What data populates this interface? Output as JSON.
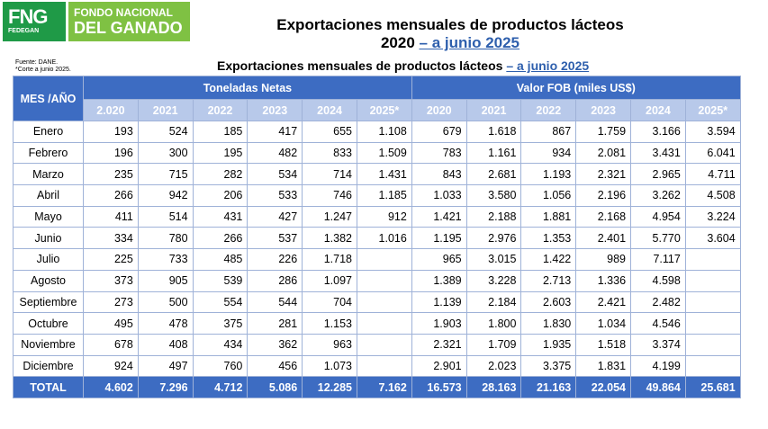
{
  "logo": {
    "short": "FNG",
    "sub": "FEDEGAN",
    "line1": "FONDO NACIONAL",
    "line2": "DEL GANADO"
  },
  "header": {
    "title_line1": "Exportaciones mensuales de productos lácteos",
    "title_line2_prefix": "2020 ",
    "title_line2_link": "– a junio 2025",
    "subtitle_prefix": "Exportaciones mensuales de productos lácteos ",
    "subtitle_link": "– a junio 2025",
    "source_line1": "Fuente: DANE.",
    "source_line2": "*Corte a junio 2025."
  },
  "table": {
    "corner": "MES /AÑO",
    "group1": "Toneladas Netas",
    "group2": "Valor FOB (miles US$)",
    "years1": [
      "2.020",
      "2021",
      "2022",
      "2023",
      "2024",
      "2025*"
    ],
    "years2": [
      "2020",
      "2021",
      "2022",
      "2023",
      "2024",
      "2025*"
    ],
    "rows": [
      {
        "month": "Enero",
        "v": [
          "193",
          "524",
          "185",
          "417",
          "655",
          "1.108",
          "679",
          "1.618",
          "867",
          "1.759",
          "3.166",
          "3.594"
        ]
      },
      {
        "month": "Febrero",
        "v": [
          "196",
          "300",
          "195",
          "482",
          "833",
          "1.509",
          "783",
          "1.161",
          "934",
          "2.081",
          "3.431",
          "6.041"
        ]
      },
      {
        "month": "Marzo",
        "v": [
          "235",
          "715",
          "282",
          "534",
          "714",
          "1.431",
          "843",
          "2.681",
          "1.193",
          "2.321",
          "2.965",
          "4.711"
        ]
      },
      {
        "month": "Abril",
        "v": [
          "266",
          "942",
          "206",
          "533",
          "746",
          "1.185",
          "1.033",
          "3.580",
          "1.056",
          "2.196",
          "3.262",
          "4.508"
        ]
      },
      {
        "month": "Mayo",
        "v": [
          "411",
          "514",
          "431",
          "427",
          "1.247",
          "912",
          "1.421",
          "2.188",
          "1.881",
          "2.168",
          "4.954",
          "3.224"
        ]
      },
      {
        "month": "Junio",
        "v": [
          "334",
          "780",
          "266",
          "537",
          "1.382",
          "1.016",
          "1.195",
          "2.976",
          "1.353",
          "2.401",
          "5.770",
          "3.604"
        ]
      },
      {
        "month": "Julio",
        "v": [
          "225",
          "733",
          "485",
          "226",
          "1.718",
          "",
          "965",
          "3.015",
          "1.422",
          "989",
          "7.117",
          ""
        ]
      },
      {
        "month": "Agosto",
        "v": [
          "373",
          "905",
          "539",
          "286",
          "1.097",
          "",
          "1.389",
          "3.228",
          "2.713",
          "1.336",
          "4.598",
          ""
        ]
      },
      {
        "month": "Septiembre",
        "v": [
          "273",
          "500",
          "554",
          "544",
          "704",
          "",
          "1.139",
          "2.184",
          "2.603",
          "2.421",
          "2.482",
          ""
        ]
      },
      {
        "month": "Octubre",
        "v": [
          "495",
          "478",
          "375",
          "281",
          "1.153",
          "",
          "1.903",
          "1.800",
          "1.830",
          "1.034",
          "4.546",
          ""
        ]
      },
      {
        "month": "Noviembre",
        "v": [
          "678",
          "408",
          "434",
          "362",
          "963",
          "",
          "2.321",
          "1.709",
          "1.935",
          "1.518",
          "3.374",
          ""
        ]
      },
      {
        "month": "Diciembre",
        "v": [
          "924",
          "497",
          "760",
          "456",
          "1.073",
          "",
          "2.901",
          "2.023",
          "3.375",
          "1.831",
          "4.199",
          ""
        ]
      }
    ],
    "total_label": "TOTAL",
    "totals": [
      "4.602",
      "7.296",
      "4.712",
      "5.086",
      "12.285",
      "7.162",
      "16.573",
      "28.163",
      "21.163",
      "22.054",
      "49.864",
      "25.681"
    ]
  }
}
